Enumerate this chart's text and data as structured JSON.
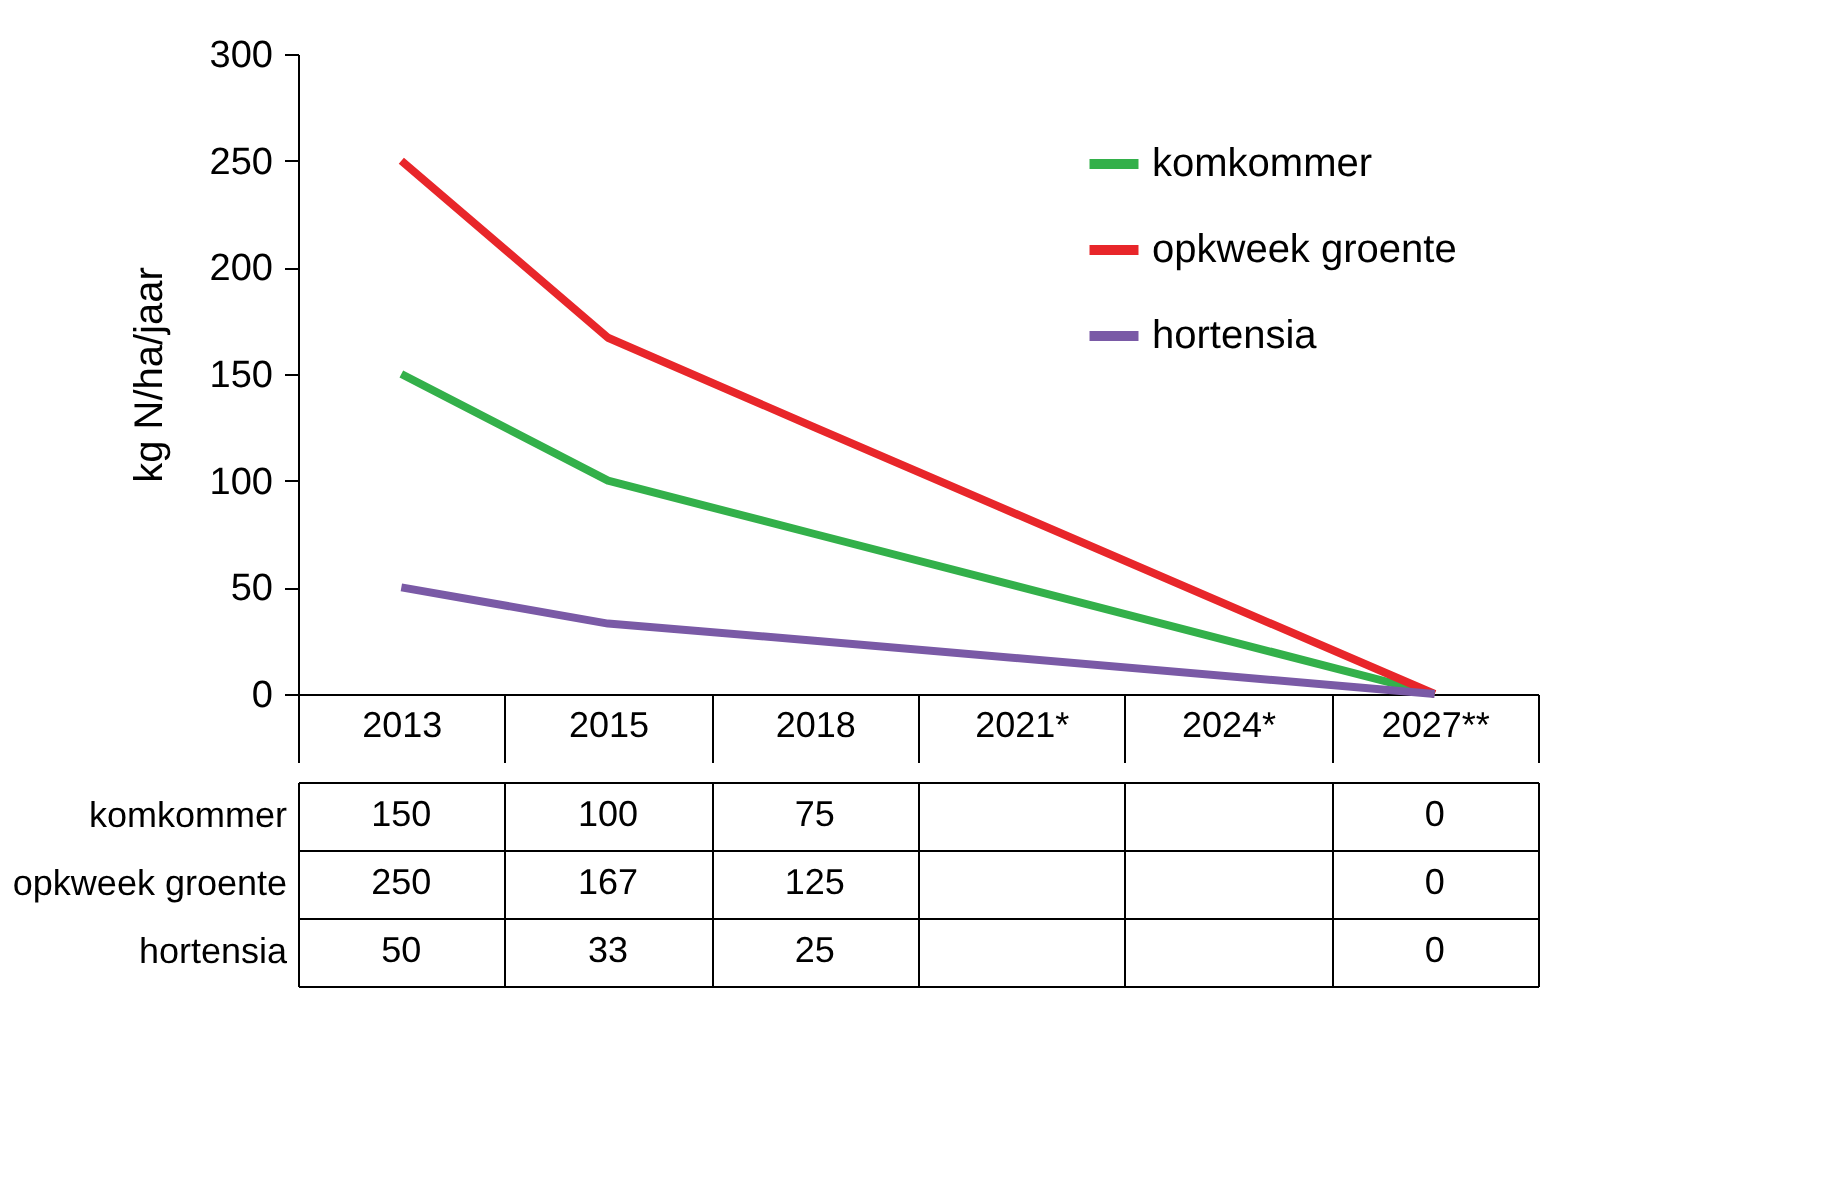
{
  "chart_data": {
    "type": "line",
    "ylabel": "kg N/ha/jaar",
    "categories": [
      "2013",
      "2015",
      "2018",
      "2021*",
      "2024*",
      "2027**"
    ],
    "series": [
      {
        "name": "komkommer",
        "color": "#33b04a",
        "values": [
          150,
          100,
          75,
          null,
          null,
          0
        ]
      },
      {
        "name": "opkweek groente",
        "color": "#e8262a",
        "values": [
          250,
          167,
          125,
          null,
          null,
          0
        ]
      },
      {
        "name": "hortensia",
        "color": "#7a5aa6",
        "values": [
          50,
          33,
          25,
          null,
          null,
          0
        ]
      }
    ],
    "ylim": [
      0,
      300
    ],
    "yticks": [
      0,
      50,
      100,
      150,
      200,
      250,
      300
    ],
    "legend": "top right",
    "data_labels": true
  }
}
